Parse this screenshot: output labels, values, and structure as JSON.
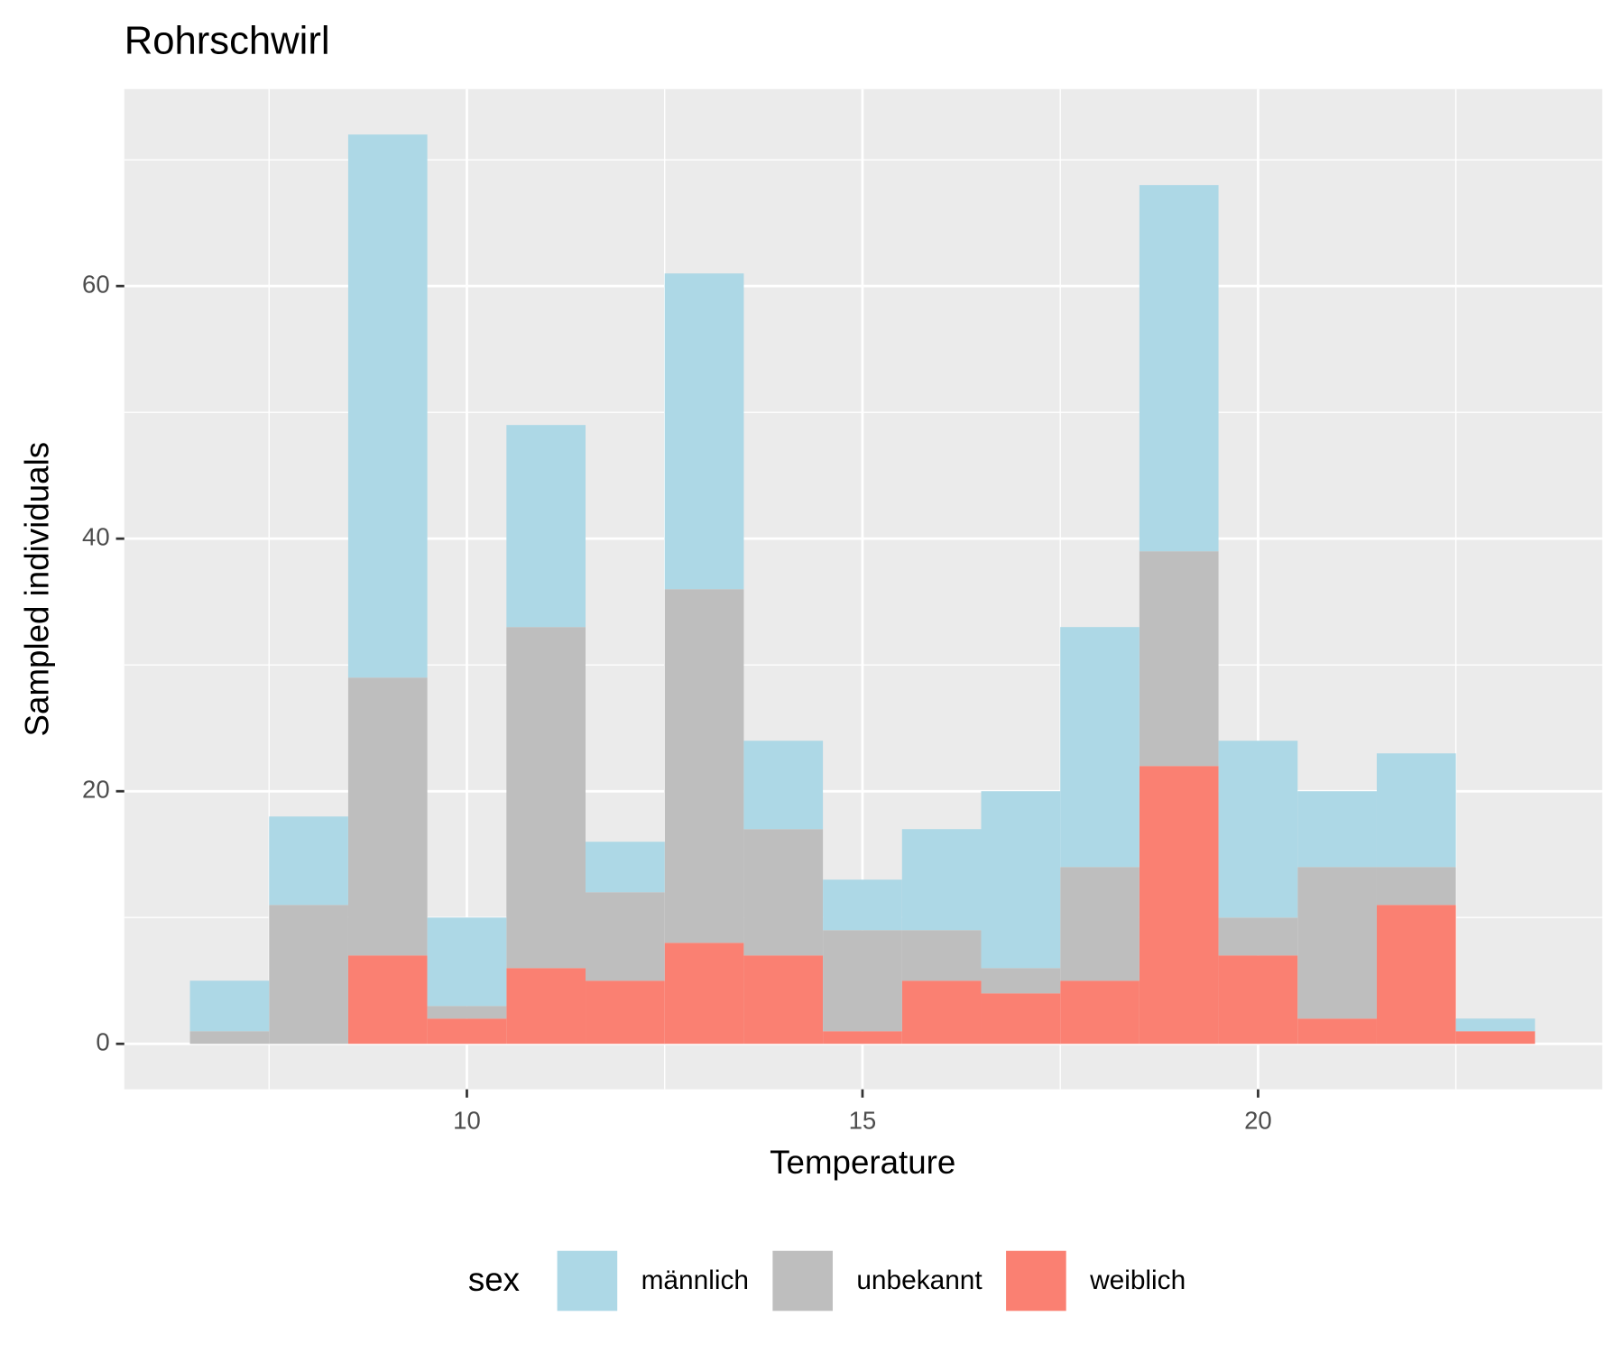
{
  "chart_data": {
    "type": "histogram",
    "title": "Rohrschwirl",
    "x_label": "Temperature",
    "y_label": "Sampled individuals",
    "legend_title": "sex",
    "legend_position": "bottom",
    "stacked": true,
    "grid": true,
    "bins": [
      6.5,
      7.5,
      8.5,
      9.5,
      10.5,
      11.5,
      12.5,
      13.5,
      14.5,
      15.5,
      16.5,
      17.5,
      18.5,
      19.5,
      20.5,
      21.5,
      22.5,
      23.5
    ],
    "series": [
      {
        "name": "männlich",
        "color": "#add8e6",
        "values": [
          4,
          7,
          43,
          7,
          16,
          4,
          25,
          7,
          4,
          8,
          14,
          19,
          29,
          14,
          6,
          9,
          1
        ]
      },
      {
        "name": "unbekannt",
        "color": "#bebebe",
        "values": [
          1,
          11,
          22,
          1,
          27,
          7,
          28,
          10,
          8,
          4,
          2,
          9,
          17,
          3,
          12,
          3,
          0
        ]
      },
      {
        "name": "weiblich",
        "color": "#fa8072",
        "values": [
          0,
          0,
          7,
          2,
          6,
          5,
          8,
          7,
          1,
          5,
          4,
          5,
          22,
          7,
          2,
          11,
          1
        ]
      }
    ],
    "xlim": [
      5.67,
      24.35
    ],
    "ylim": [
      -3.6,
      75.6
    ],
    "xticks": [
      10,
      15,
      20
    ],
    "yticks": [
      0,
      20,
      40,
      60
    ]
  }
}
